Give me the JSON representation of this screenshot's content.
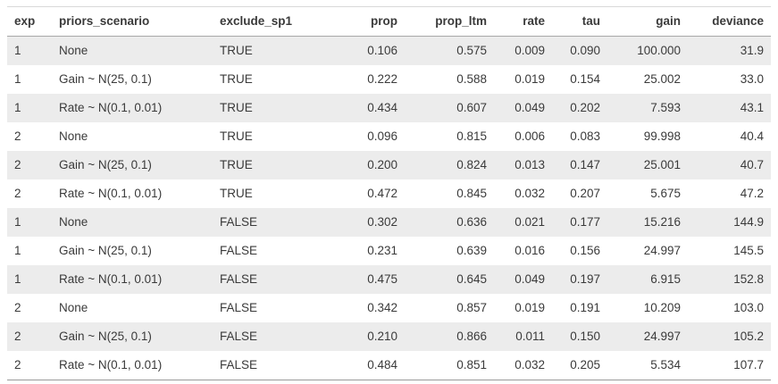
{
  "chart_data": {
    "type": "table",
    "columns": [
      {
        "label": "exp",
        "align": "left"
      },
      {
        "label": "priors_scenario",
        "align": "left"
      },
      {
        "label": "exclude_sp1",
        "align": "left"
      },
      {
        "label": "prop",
        "align": "right"
      },
      {
        "label": "prop_ltm",
        "align": "right"
      },
      {
        "label": "rate",
        "align": "right"
      },
      {
        "label": "tau",
        "align": "right"
      },
      {
        "label": "gain",
        "align": "right"
      },
      {
        "label": "deviance",
        "align": "right"
      }
    ],
    "rows": [
      [
        "1",
        "None",
        "TRUE",
        "0.106",
        "0.575",
        "0.009",
        "0.090",
        "100.000",
        "31.9"
      ],
      [
        "1",
        "Gain ~ N(25, 0.1)",
        "TRUE",
        "0.222",
        "0.588",
        "0.019",
        "0.154",
        "25.002",
        "33.0"
      ],
      [
        "1",
        "Rate ~ N(0.1, 0.01)",
        "TRUE",
        "0.434",
        "0.607",
        "0.049",
        "0.202",
        "7.593",
        "43.1"
      ],
      [
        "2",
        "None",
        "TRUE",
        "0.096",
        "0.815",
        "0.006",
        "0.083",
        "99.998",
        "40.4"
      ],
      [
        "2",
        "Gain ~ N(25, 0.1)",
        "TRUE",
        "0.200",
        "0.824",
        "0.013",
        "0.147",
        "25.001",
        "40.7"
      ],
      [
        "2",
        "Rate ~ N(0.1, 0.01)",
        "TRUE",
        "0.472",
        "0.845",
        "0.032",
        "0.207",
        "5.675",
        "47.2"
      ],
      [
        "1",
        "None",
        "FALSE",
        "0.302",
        "0.636",
        "0.021",
        "0.177",
        "15.216",
        "144.9"
      ],
      [
        "1",
        "Gain ~ N(25, 0.1)",
        "FALSE",
        "0.231",
        "0.639",
        "0.016",
        "0.156",
        "24.997",
        "145.5"
      ],
      [
        "1",
        "Rate ~ N(0.1, 0.01)",
        "FALSE",
        "0.475",
        "0.645",
        "0.049",
        "0.197",
        "6.915",
        "152.8"
      ],
      [
        "2",
        "None",
        "FALSE",
        "0.342",
        "0.857",
        "0.019",
        "0.191",
        "10.209",
        "103.0"
      ],
      [
        "2",
        "Gain ~ N(25, 0.1)",
        "FALSE",
        "0.210",
        "0.866",
        "0.011",
        "0.150",
        "24.997",
        "105.2"
      ],
      [
        "2",
        "Rate ~ N(0.1, 0.01)",
        "FALSE",
        "0.484",
        "0.851",
        "0.032",
        "0.205",
        "5.534",
        "107.7"
      ]
    ],
    "layout": {
      "striped": true,
      "stripe_rows": "odd",
      "header_bold": true,
      "legend": "none",
      "grid": "off"
    }
  },
  "colors": {
    "stripe": "#ececec",
    "text": "#3a3a3a",
    "border_top": "#d9d9d9",
    "border_header": "#a8a8a8",
    "border_bottom": "#9a9a9a",
    "background": "#ffffff"
  }
}
